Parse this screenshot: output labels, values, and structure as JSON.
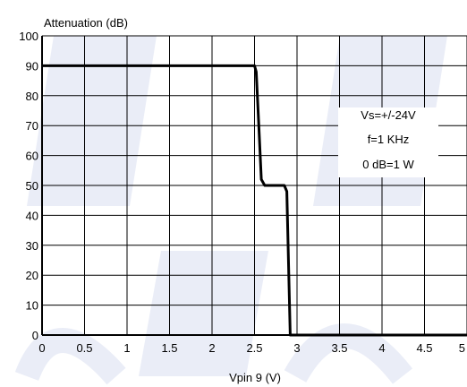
{
  "chart_data": {
    "type": "line",
    "xlabel": "Vpin 9  (V)",
    "ylabel": "Attenuation  (dB)",
    "xlim": [
      0,
      5
    ],
    "ylim": [
      0,
      100
    ],
    "xticks": [
      0,
      0.5,
      1,
      1.5,
      2,
      2.5,
      3,
      3.5,
      4,
      4.5,
      5
    ],
    "xtick_labels": [
      "0",
      "0.5",
      "1",
      "1.5",
      "2",
      "2.5",
      "3",
      "3.5",
      "4",
      "4.5",
      "5"
    ],
    "yticks": [
      0,
      10,
      20,
      30,
      40,
      50,
      60,
      70,
      80,
      90,
      100
    ],
    "ytick_labels": [
      "0",
      "10",
      "20",
      "30",
      "40",
      "50",
      "60",
      "70",
      "80",
      "90",
      "100"
    ],
    "grid": true,
    "series": [
      {
        "x": [
          0,
          2.5,
          2.52,
          2.55,
          2.58,
          2.62,
          2.85,
          2.88,
          2.92,
          5
        ],
        "y": [
          90,
          90,
          88,
          70,
          52,
          50,
          50,
          48,
          0,
          0
        ]
      }
    ],
    "annotations": [
      "Vs=+/-24V",
      "f=1 KHz",
      "0 dB=1 W"
    ]
  },
  "colors": {
    "line": "#000000",
    "grid": "#000000",
    "watermark": "#d9dff0"
  }
}
